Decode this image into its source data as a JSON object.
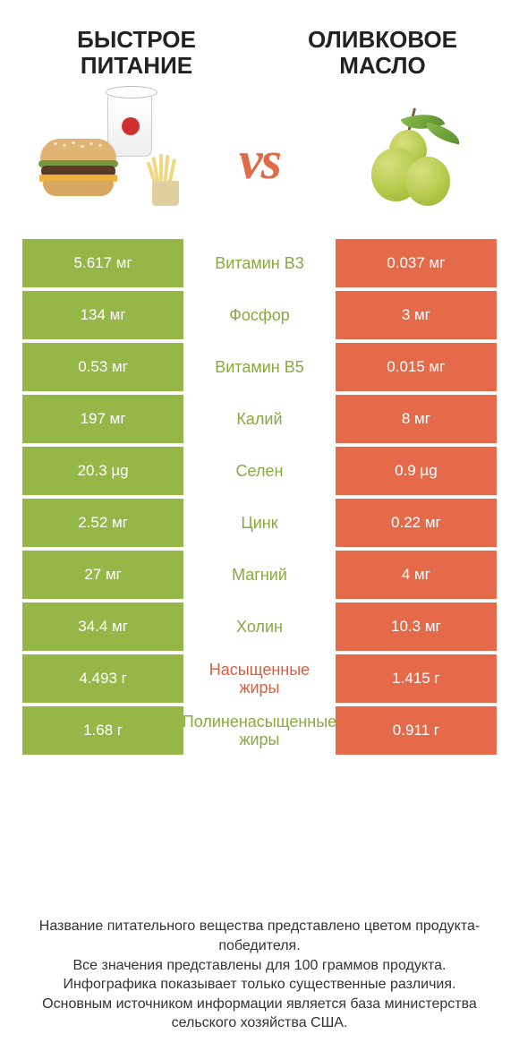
{
  "left_title": "Быстрое питание",
  "right_title": "Оливковое масло",
  "vs_label": "vs",
  "colors": {
    "green": "#95b748",
    "orange": "#e46a4a",
    "green_text": "#8aa840",
    "orange_text": "#d85f42"
  },
  "rows": [
    {
      "left": "5.617 мг",
      "label": "Витамин B3",
      "right": "0.037 мг",
      "winner": "left"
    },
    {
      "left": "134 мг",
      "label": "Фосфор",
      "right": "3 мг",
      "winner": "left"
    },
    {
      "left": "0.53 мг",
      "label": "Витамин B5",
      "right": "0.015 мг",
      "winner": "left"
    },
    {
      "left": "197 мг",
      "label": "Калий",
      "right": "8 мг",
      "winner": "left"
    },
    {
      "left": "20.3 µg",
      "label": "Селен",
      "right": "0.9 µg",
      "winner": "left"
    },
    {
      "left": "2.52 мг",
      "label": "Цинк",
      "right": "0.22 мг",
      "winner": "left"
    },
    {
      "left": "27 мг",
      "label": "Магний",
      "right": "4 мг",
      "winner": "left"
    },
    {
      "left": "34.4 мг",
      "label": "Холин",
      "right": "10.3 мг",
      "winner": "left"
    },
    {
      "left": "4.493 г",
      "label": "Насыщенные жиры",
      "right": "1.415 г",
      "winner": "right"
    },
    {
      "left": "1.68 г",
      "label": "Полиненасыщенные жиры",
      "right": "0.911 г",
      "winner": "left"
    }
  ],
  "footer_lines": [
    "Название питательного вещества представлено цветом продукта-победителя.",
    "Все значения представлены для 100 граммов продукта.",
    "Инфографика показывает только существенные различия.",
    "Основным источником информации является база министерства сельского хозяйства США."
  ]
}
